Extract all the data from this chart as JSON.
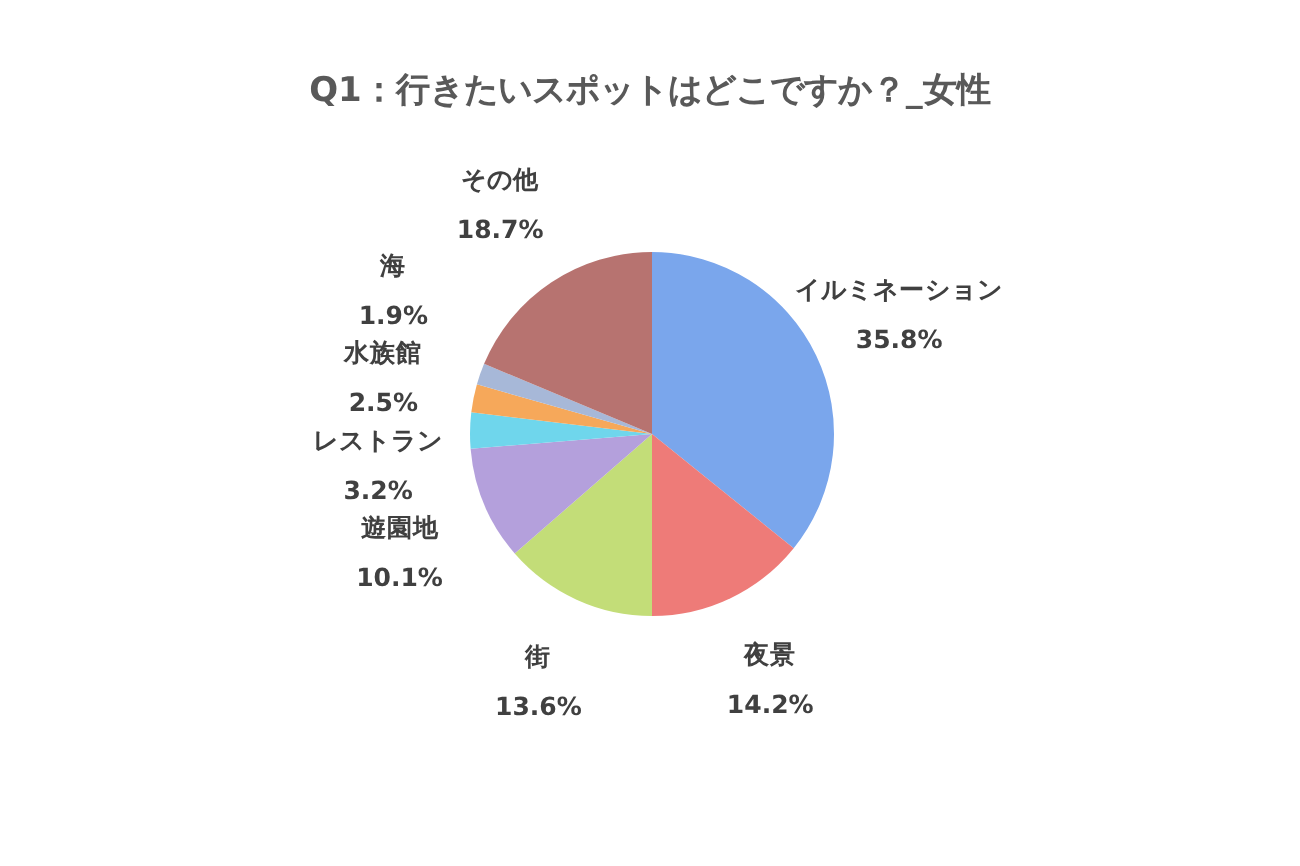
{
  "chart_data": {
    "type": "pie",
    "title": "Q1：行きたいスポットはどこですか？_女性",
    "categories": [
      "イルミネーション",
      "夜景",
      "街",
      "遊園地",
      "レストラン",
      "水族館",
      "海",
      "その他"
    ],
    "values": [
      35.8,
      14.2,
      13.6,
      10.1,
      3.2,
      2.5,
      1.9,
      18.7
    ],
    "value_labels": [
      "35.8%",
      "14.2%",
      "13.6%",
      "10.1%",
      "3.2%",
      "2.5%",
      "1.9%",
      "18.7%"
    ],
    "colors": [
      "#7aa6ec",
      "#ee7b78",
      "#c3dd78",
      "#b4a0dc",
      "#6fd6ec",
      "#f6a85a",
      "#a7b8d8",
      "#b77370"
    ]
  }
}
